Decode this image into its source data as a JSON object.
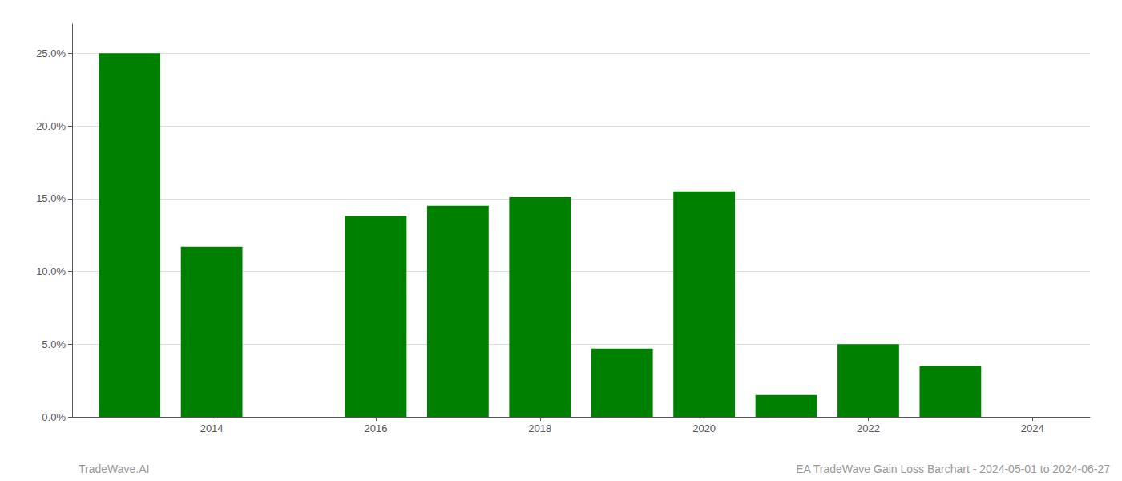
{
  "chart_data": {
    "type": "bar",
    "x": [
      2013,
      2014,
      2016,
      2017,
      2018,
      2019,
      2020,
      2021,
      2022,
      2023
    ],
    "values": [
      0.25,
      0.117,
      0.138,
      0.145,
      0.151,
      0.047,
      0.155,
      0.015,
      0.05,
      0.035
    ],
    "color": "#008000",
    "xlim": [
      2012.3,
      2024.7
    ],
    "xticks": [
      2014,
      2016,
      2018,
      2020,
      2022,
      2024
    ],
    "ylim": [
      0,
      0.27
    ],
    "yticks": [
      {
        "value": 0.0,
        "label": "0.0%"
      },
      {
        "value": 0.05,
        "label": "5.0%"
      },
      {
        "value": 0.1,
        "label": "10.0%"
      },
      {
        "value": 0.15,
        "label": "15.0%"
      },
      {
        "value": 0.2,
        "label": "20.0%"
      },
      {
        "value": 0.25,
        "label": "25.0%"
      }
    ],
    "grid": true,
    "annotations": [
      "TradeWave.AI",
      "EA TradeWave Gain Loss Barchart - 2024-05-01 to 2024-06-27"
    ]
  }
}
